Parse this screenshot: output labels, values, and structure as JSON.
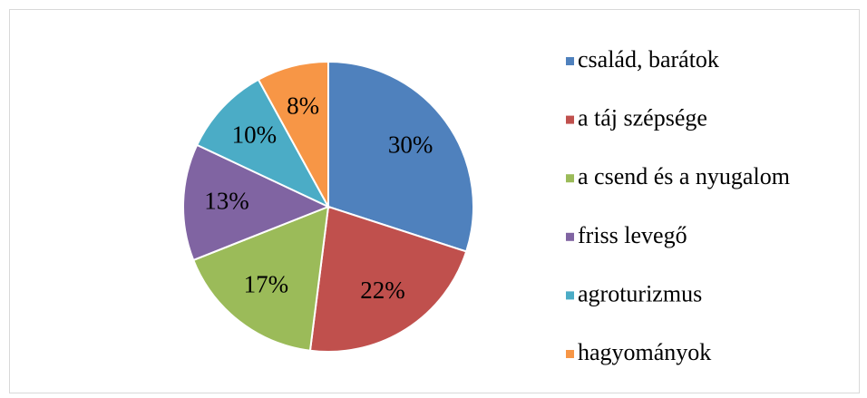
{
  "chart_data": {
    "type": "pie",
    "categories": [
      "család, barátok",
      "a táj szépsége",
      "a csend és a nyugalom",
      "friss levegő",
      "agroturizmus",
      "hagyományok"
    ],
    "values": [
      30,
      22,
      17,
      13,
      10,
      8
    ],
    "value_labels": [
      "30%",
      "22%",
      "17%",
      "13%",
      "10%",
      "8%"
    ],
    "colors": [
      "#4f81bd",
      "#c0504d",
      "#9bbb59",
      "#8064a2",
      "#4bacc6",
      "#f79646"
    ],
    "legend": "right"
  }
}
